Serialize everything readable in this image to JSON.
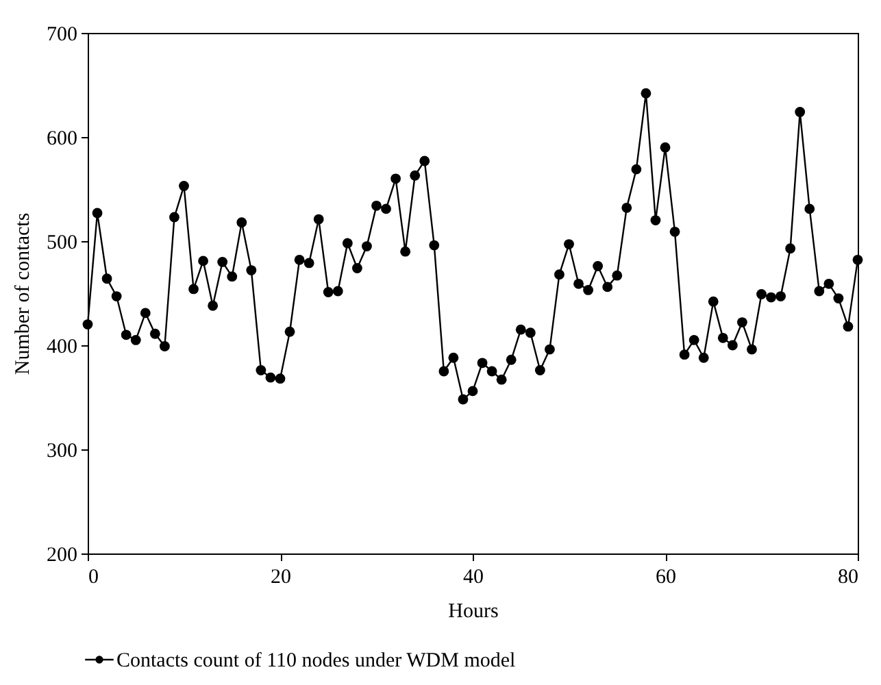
{
  "chart_data": {
    "type": "line",
    "xlabel": "Hours",
    "ylabel": "Number of contacts",
    "x": [
      0,
      1,
      2,
      3,
      4,
      5,
      6,
      7,
      8,
      9,
      10,
      11,
      12,
      13,
      14,
      15,
      16,
      17,
      18,
      19,
      20,
      21,
      22,
      23,
      24,
      25,
      26,
      27,
      28,
      29,
      30,
      31,
      32,
      33,
      34,
      35,
      36,
      37,
      38,
      39,
      40,
      41,
      42,
      43,
      44,
      45,
      46,
      47,
      48,
      49,
      50,
      51,
      52,
      53,
      54,
      55,
      56,
      57,
      58,
      59,
      60,
      61,
      62,
      63,
      64,
      65,
      66,
      67,
      68,
      69,
      70,
      71,
      72,
      73,
      74,
      75,
      76,
      77,
      78,
      79,
      80
    ],
    "series": [
      {
        "name": "Contacts count of 110 nodes under WDM model",
        "color": "#000000",
        "values": [
          420,
          527,
          464,
          447,
          410,
          405,
          431,
          411,
          399,
          523,
          553,
          454,
          481,
          438,
          480,
          466,
          518,
          472,
          376,
          369,
          368,
          413,
          482,
          479,
          521,
          451,
          452,
          498,
          474,
          495,
          534,
          531,
          560,
          490,
          563,
          577,
          496,
          375,
          388,
          348,
          356,
          383,
          375,
          367,
          386,
          415,
          412,
          376,
          396,
          468,
          497,
          459,
          453,
          476,
          456,
          467,
          532,
          569,
          642,
          520,
          590,
          509,
          391,
          405,
          388,
          442,
          407,
          400,
          422,
          396,
          449,
          446,
          447,
          493,
          624,
          531,
          452,
          459,
          445,
          418,
          482
        ]
      }
    ],
    "xlim": [
      0,
      80
    ],
    "xticks": [
      0,
      20,
      40,
      60,
      80
    ],
    "ylim": [
      200,
      700
    ],
    "yticks": [
      200,
      300,
      400,
      500,
      600,
      700
    ],
    "grid": false,
    "legend": "bottom",
    "marker": "circle",
    "line_style": "solid"
  }
}
